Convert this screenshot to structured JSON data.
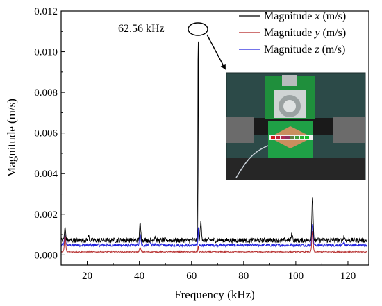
{
  "chart_data": {
    "type": "line",
    "title": "",
    "xlabel": "Frequency (kHz)",
    "ylabel": "Magnitude (m/s)",
    "xlim": [
      10,
      128
    ],
    "ylim": [
      -0.0005,
      0.012
    ],
    "xticks": [
      20,
      40,
      60,
      80,
      100,
      120
    ],
    "yticks": [
      0.0,
      0.002,
      0.004,
      0.006,
      0.008,
      0.01,
      0.012
    ],
    "ytick_labels": [
      "0.000",
      "0.002",
      "0.004",
      "0.006",
      "0.008",
      "0.010",
      "0.012"
    ],
    "legend_position": "top-right",
    "legend": [
      {
        "pre": "Magnitude ",
        "var": "x",
        "post": " (m/s)"
      },
      {
        "pre": "Magnitude ",
        "var": "y",
        "post": " (m/s)"
      },
      {
        "pre": "Magnitude ",
        "var": "z",
        "post": " (m/s)"
      }
    ],
    "annotation": "62.56 kHz",
    "series": [
      {
        "color": "#000000",
        "baseline": 0.00072,
        "noise": 0.00012,
        "peaks": [
          [
            11.5,
            0.0006
          ],
          [
            20.5,
            0.0002
          ],
          [
            40.3,
            0.0008
          ],
          [
            46,
            0.0002
          ],
          [
            62.56,
            0.0107
          ],
          [
            63.6,
            0.0009
          ],
          [
            98.5,
            0.0003
          ],
          [
            106.4,
            0.0021
          ],
          [
            118.5,
            0.0002
          ]
        ]
      },
      {
        "color": "#b22222",
        "baseline": 0.00015,
        "noise": 2e-05,
        "peaks": [
          [
            11.5,
            0.0008
          ],
          [
            40.3,
            0.0002
          ],
          [
            62.56,
            0.0003
          ],
          [
            106.4,
            0.001
          ]
        ]
      },
      {
        "color": "#2222dd",
        "baseline": 0.00048,
        "noise": 7e-05,
        "peaks": [
          [
            11.5,
            0.0005
          ],
          [
            40.3,
            0.0005
          ],
          [
            44,
            0.0002
          ],
          [
            62.56,
            0.0009
          ],
          [
            106.4,
            0.0011
          ],
          [
            118.5,
            0.0001
          ]
        ]
      }
    ]
  }
}
